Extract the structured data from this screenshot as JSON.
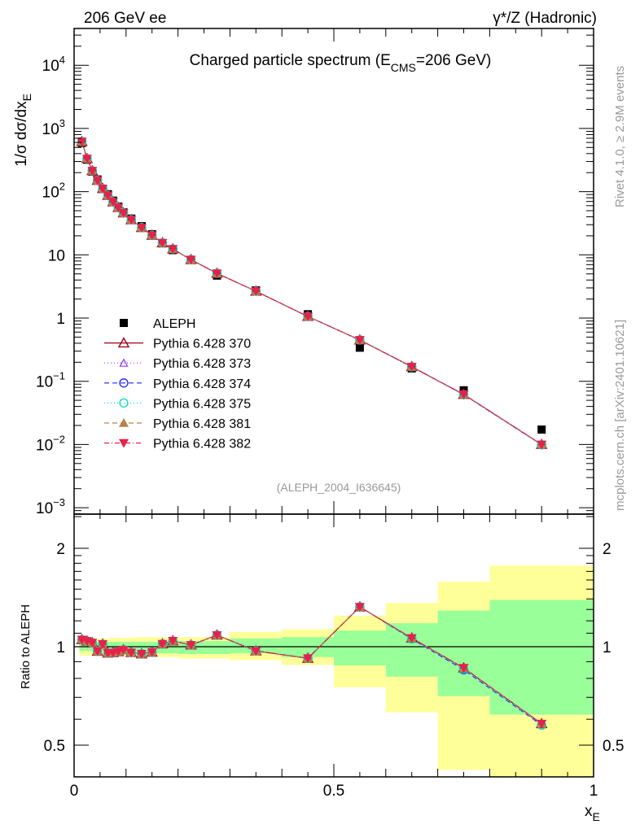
{
  "header": {
    "left": "206 GeV ee",
    "right": "γ*/Z (Hadronic)"
  },
  "side_text": {
    "rivet": "Rivet 4.1.0, ≥ 2.9M events",
    "mcplots": "mcplots.cern.ch [arXiv:2401.10621]"
  },
  "chart_data": {
    "type": "scatter",
    "title": {
      "main": "Charged particle spectrum (E",
      "sub": "CMS",
      "tail": "=206 GeV)"
    },
    "analysis_label": "(ALEPH_2004_I636645)",
    "ylabel": {
      "main": "1/σ  dσ/dx",
      "sub": "E"
    },
    "xlabel": {
      "main": "x",
      "sub": "E"
    },
    "ratio_ylabel": "Ratio to ALEPH",
    "yscale": "log",
    "ylim": [
      0.0008,
      39000
    ],
    "ratio_yscale": "log",
    "ratio_ylim": [
      0.4,
      2.54
    ],
    "xlim": [
      0,
      1
    ],
    "x_ticks": [
      {
        "v": 0,
        "label": "0"
      },
      {
        "v": 0.5,
        "label": "0.5"
      },
      {
        "v": 1,
        "label": "1"
      }
    ],
    "y_ticks": [
      {
        "v": 10000,
        "base": "10",
        "exp": "4"
      },
      {
        "v": 1000,
        "base": "10",
        "exp": "3"
      },
      {
        "v": 100,
        "base": "10",
        "exp": "2"
      },
      {
        "v": 10,
        "base": "10",
        "exp": ""
      },
      {
        "v": 1,
        "base": "1",
        "exp": ""
      },
      {
        "v": 0.1,
        "base": "10",
        "exp": "−1"
      },
      {
        "v": 0.01,
        "base": "10",
        "exp": "−2"
      },
      {
        "v": 0.001,
        "base": "10",
        "exp": "−3"
      }
    ],
    "ratio_ticks": [
      {
        "v": 0.5,
        "label": "0.5"
      },
      {
        "v": 1,
        "label": "1"
      },
      {
        "v": 2,
        "label": "2"
      }
    ],
    "legend_position": "middle-left",
    "x": [
      0.015,
      0.025,
      0.035,
      0.045,
      0.055,
      0.065,
      0.075,
      0.085,
      0.095,
      0.11,
      0.13,
      0.15,
      0.17,
      0.19,
      0.225,
      0.275,
      0.35,
      0.45,
      0.55,
      0.65,
      0.75,
      0.9
    ],
    "bin_edges": [
      0.01,
      0.02,
      0.03,
      0.04,
      0.05,
      0.06,
      0.07,
      0.08,
      0.09,
      0.1,
      0.12,
      0.14,
      0.16,
      0.18,
      0.2,
      0.25,
      0.3,
      0.4,
      0.5,
      0.6,
      0.7,
      0.8,
      1.0
    ],
    "reference": {
      "name": "ALEPH",
      "color": "#000000",
      "values": [
        590,
        320,
        208,
        156,
        110,
        91,
        72,
        58,
        47,
        37.5,
        28.4,
        21.2,
        15.2,
        11.9,
        8.3,
        4.7,
        2.74,
        1.15,
        0.34,
        0.16,
        0.072,
        0.0172
      ],
      "band_inner": [
        [
          0.97,
          1.03
        ],
        [
          0.97,
          1.03
        ],
        [
          0.97,
          1.03
        ],
        [
          0.97,
          1.03
        ],
        [
          0.97,
          1.03
        ],
        [
          0.965,
          1.035
        ],
        [
          0.965,
          1.035
        ],
        [
          0.96,
          1.035
        ],
        [
          0.96,
          1.035
        ],
        [
          0.96,
          1.035
        ],
        [
          0.955,
          1.035
        ],
        [
          0.955,
          1.035
        ],
        [
          0.955,
          1.04
        ],
        [
          0.955,
          1.04
        ],
        [
          0.95,
          1.04
        ],
        [
          0.95,
          1.04
        ],
        [
          0.955,
          1.06
        ],
        [
          0.93,
          1.07
        ],
        [
          0.877,
          1.12
        ],
        [
          0.81,
          1.18
        ],
        [
          0.706,
          1.29
        ],
        [
          0.62,
          1.39
        ]
      ],
      "band_outer": [
        [
          0.94,
          1.06
        ],
        [
          0.94,
          1.06
        ],
        [
          0.94,
          1.06
        ],
        [
          0.94,
          1.06
        ],
        [
          0.94,
          1.06
        ],
        [
          0.935,
          1.06
        ],
        [
          0.935,
          1.065
        ],
        [
          0.935,
          1.065
        ],
        [
          0.935,
          1.065
        ],
        [
          0.93,
          1.065
        ],
        [
          0.93,
          1.07
        ],
        [
          0.93,
          1.07
        ],
        [
          0.93,
          1.07
        ],
        [
          0.93,
          1.07
        ],
        [
          0.92,
          1.07
        ],
        [
          0.92,
          1.07
        ],
        [
          0.91,
          1.11
        ],
        [
          0.88,
          1.13
        ],
        [
          0.751,
          1.245
        ],
        [
          0.63,
          1.36
        ],
        [
          0.42,
          1.58
        ],
        [
          0.35,
          1.77
        ]
      ]
    },
    "series": [
      {
        "name": "Pythia 6.428 370",
        "color": "#a00018",
        "dash": "",
        "marker": "tri-open",
        "values": [
          620,
          333,
          214,
          151,
          112,
          87,
          69,
          56,
          46,
          36,
          27,
          20.4,
          15.5,
          12.4,
          8.4,
          5.1,
          2.66,
          1.06,
          0.45,
          0.17,
          0.062,
          0.01
        ]
      },
      {
        "name": "Pythia 6.428 373",
        "color": "#9933e6",
        "dash": "1,3",
        "marker": "tri-open-small",
        "values": [
          620,
          333,
          214,
          151,
          112,
          87,
          69,
          56,
          46,
          36,
          27,
          20.4,
          15.5,
          12.4,
          8.4,
          5.1,
          2.66,
          1.06,
          0.45,
          0.17,
          0.062,
          0.01
        ]
      },
      {
        "name": "Pythia 6.428 374",
        "color": "#2222ff",
        "dash": "6,4",
        "marker": "circle-open",
        "values": [
          620,
          333,
          214,
          151,
          112,
          87,
          69,
          56,
          46,
          36,
          27,
          20.4,
          15.5,
          12.4,
          8.4,
          5.1,
          2.66,
          1.06,
          0.45,
          0.169,
          0.0612,
          0.0099
        ]
      },
      {
        "name": "Pythia 6.428 375",
        "color": "#00e0c0",
        "dash": "1,3",
        "marker": "circle-open",
        "values": [
          620,
          333,
          214,
          151,
          112,
          87,
          69,
          56,
          46,
          36,
          27,
          20.4,
          15.5,
          12.4,
          8.4,
          5.1,
          2.66,
          1.06,
          0.45,
          0.169,
          0.0615,
          0.0099
        ]
      },
      {
        "name": "Pythia 6.428 381",
        "color": "#b8804a",
        "dash": "6,4",
        "marker": "tri-filled",
        "values": [
          620,
          333,
          214,
          151,
          112,
          87,
          69,
          56,
          46,
          36,
          27,
          20.4,
          15.5,
          12.4,
          8.4,
          5.1,
          2.66,
          1.06,
          0.45,
          0.17,
          0.062,
          0.01
        ]
      },
      {
        "name": "Pythia 6.428 382",
        "color": "#e8204a",
        "dash": "6,3,1,3",
        "marker": "tri-down-filled",
        "values": [
          620,
          333,
          214,
          151,
          112,
          87,
          69,
          56,
          46,
          36,
          27,
          20.4,
          15.5,
          12.4,
          8.4,
          5.1,
          2.66,
          1.06,
          0.45,
          0.17,
          0.062,
          0.01
        ]
      }
    ],
    "band_colors": {
      "inner": "#99ff99",
      "outer": "#ffff99"
    }
  }
}
